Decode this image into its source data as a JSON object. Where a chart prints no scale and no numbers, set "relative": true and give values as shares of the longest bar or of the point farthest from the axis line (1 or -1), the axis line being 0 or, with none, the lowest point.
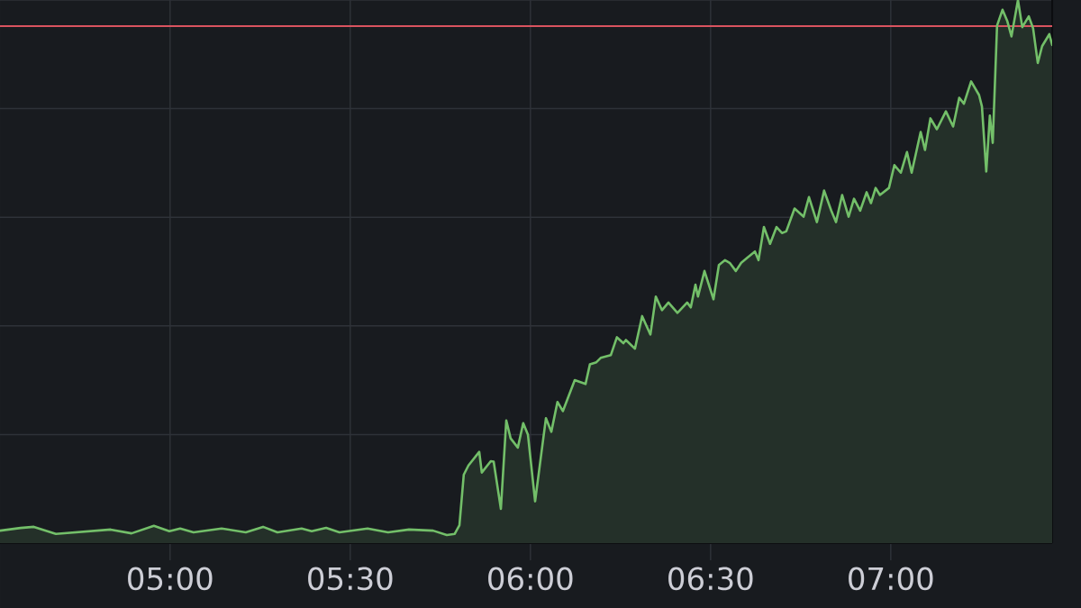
{
  "chart_data": {
    "type": "area",
    "relative": true,
    "x": [
      4.528,
      4.585,
      4.622,
      4.683,
      4.835,
      4.893,
      4.955,
      4.998,
      5.028,
      5.065,
      5.143,
      5.21,
      5.258,
      5.298,
      5.365,
      5.393,
      5.433,
      5.47,
      5.548,
      5.605,
      5.663,
      5.73,
      5.768,
      5.79,
      5.803,
      5.815,
      5.828,
      5.858,
      5.865,
      5.89,
      5.898,
      5.918,
      5.933,
      5.945,
      5.965,
      5.98,
      5.993,
      6.013,
      6.043,
      6.058,
      6.075,
      6.09,
      6.123,
      6.153,
      6.165,
      6.183,
      6.195,
      6.223,
      6.24,
      6.258,
      6.265,
      6.29,
      6.31,
      6.333,
      6.348,
      6.365,
      6.383,
      6.408,
      6.435,
      6.445,
      6.458,
      6.465,
      6.483,
      6.508,
      6.523,
      6.54,
      6.553,
      6.57,
      6.585,
      6.603,
      6.623,
      6.633,
      6.648,
      6.665,
      6.683,
      6.698,
      6.71,
      6.733,
      6.758,
      6.773,
      6.795,
      6.815,
      6.835,
      6.848,
      6.865,
      6.883,
      6.898,
      6.915,
      6.933,
      6.945,
      6.958,
      6.97,
      6.995,
      7.01,
      7.028,
      7.045,
      7.058,
      7.083,
      7.095,
      7.11,
      7.128,
      7.153,
      7.173,
      7.19,
      7.203,
      7.223,
      7.245,
      7.253,
      7.265,
      7.275,
      7.283,
      7.295,
      7.31,
      7.323,
      7.335,
      7.353,
      7.365,
      7.383,
      7.395,
      7.408,
      7.42,
      7.44,
      7.448
    ],
    "series": [
      {
        "color": "#73bf69",
        "values": [
          0.023,
          0.028,
          0.03,
          0.017,
          0.025,
          0.018,
          0.032,
          0.022,
          0.027,
          0.02,
          0.027,
          0.02,
          0.03,
          0.02,
          0.027,
          0.022,
          0.028,
          0.02,
          0.027,
          0.02,
          0.025,
          0.023,
          0.015,
          0.017,
          0.033,
          0.126,
          0.143,
          0.168,
          0.13,
          0.151,
          0.15,
          0.063,
          0.226,
          0.193,
          0.176,
          0.221,
          0.2,
          0.077,
          0.23,
          0.205,
          0.26,
          0.243,
          0.3,
          0.293,
          0.329,
          0.333,
          0.341,
          0.346,
          0.379,
          0.368,
          0.374,
          0.358,
          0.418,
          0.384,
          0.454,
          0.429,
          0.443,
          0.424,
          0.443,
          0.434,
          0.476,
          0.454,
          0.501,
          0.449,
          0.512,
          0.521,
          0.516,
          0.501,
          0.516,
          0.526,
          0.537,
          0.521,
          0.582,
          0.551,
          0.582,
          0.571,
          0.574,
          0.616,
          0.601,
          0.637,
          0.591,
          0.649,
          0.612,
          0.591,
          0.641,
          0.601,
          0.634,
          0.612,
          0.646,
          0.626,
          0.654,
          0.641,
          0.654,
          0.696,
          0.682,
          0.72,
          0.682,
          0.757,
          0.724,
          0.782,
          0.762,
          0.795,
          0.767,
          0.82,
          0.809,
          0.85,
          0.825,
          0.804,
          0.684,
          0.787,
          0.737,
          0.953,
          0.982,
          0.962,
          0.933,
          1.0,
          0.95,
          0.97,
          0.948,
          0.884,
          0.915,
          0.937,
          0.917
        ]
      }
    ],
    "xlim": [
      4.528,
      7.448
    ],
    "xticks": [
      {
        "value": 5,
        "label": "05:00"
      },
      {
        "value": 5.5,
        "label": "05:30"
      },
      {
        "value": 6,
        "label": "06:00"
      },
      {
        "value": 6.5,
        "label": "06:30"
      },
      {
        "value": 7,
        "label": "07:00"
      }
    ],
    "grid": true,
    "ref_lines": [
      {
        "axis": "y",
        "value": 0.952,
        "color": "#d9535f"
      }
    ]
  }
}
